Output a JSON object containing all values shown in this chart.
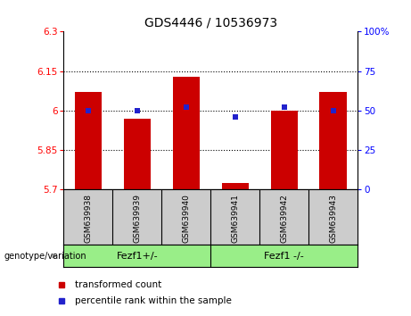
{
  "title": "GDS4446 / 10536973",
  "samples": [
    "GSM639938",
    "GSM639939",
    "GSM639940",
    "GSM639941",
    "GSM639942",
    "GSM639943"
  ],
  "bar_values": [
    6.07,
    5.97,
    6.13,
    5.725,
    6.0,
    6.07
  ],
  "percentile_ranks": [
    50,
    50,
    52,
    46,
    52,
    50
  ],
  "ylim_left": [
    5.7,
    6.3
  ],
  "ylim_right": [
    0,
    100
  ],
  "yticks_left": [
    5.7,
    5.85,
    6.0,
    6.15,
    6.3
  ],
  "ytick_labels_left": [
    "5.7",
    "5.85",
    "6",
    "6.15",
    "6.3"
  ],
  "yticks_right": [
    0,
    25,
    50,
    75,
    100
  ],
  "ytick_labels_right": [
    "0",
    "25",
    "50",
    "75",
    "100%"
  ],
  "hlines": [
    5.85,
    6.0,
    6.15
  ],
  "bar_color": "#cc0000",
  "percentile_color": "#2222cc",
  "bar_bottom": 5.7,
  "group1_label": "Fezf1+/-",
  "group2_label": "Fezf1 -/-",
  "group_color": "#99ee88",
  "label_area_color": "#cccccc",
  "legend_red_label": "transformed count",
  "legend_blue_label": "percentile rank within the sample",
  "genotype_label": "genotype/variation",
  "title_fontsize": 10,
  "axis_fontsize": 7.5,
  "label_fontsize": 6.5
}
